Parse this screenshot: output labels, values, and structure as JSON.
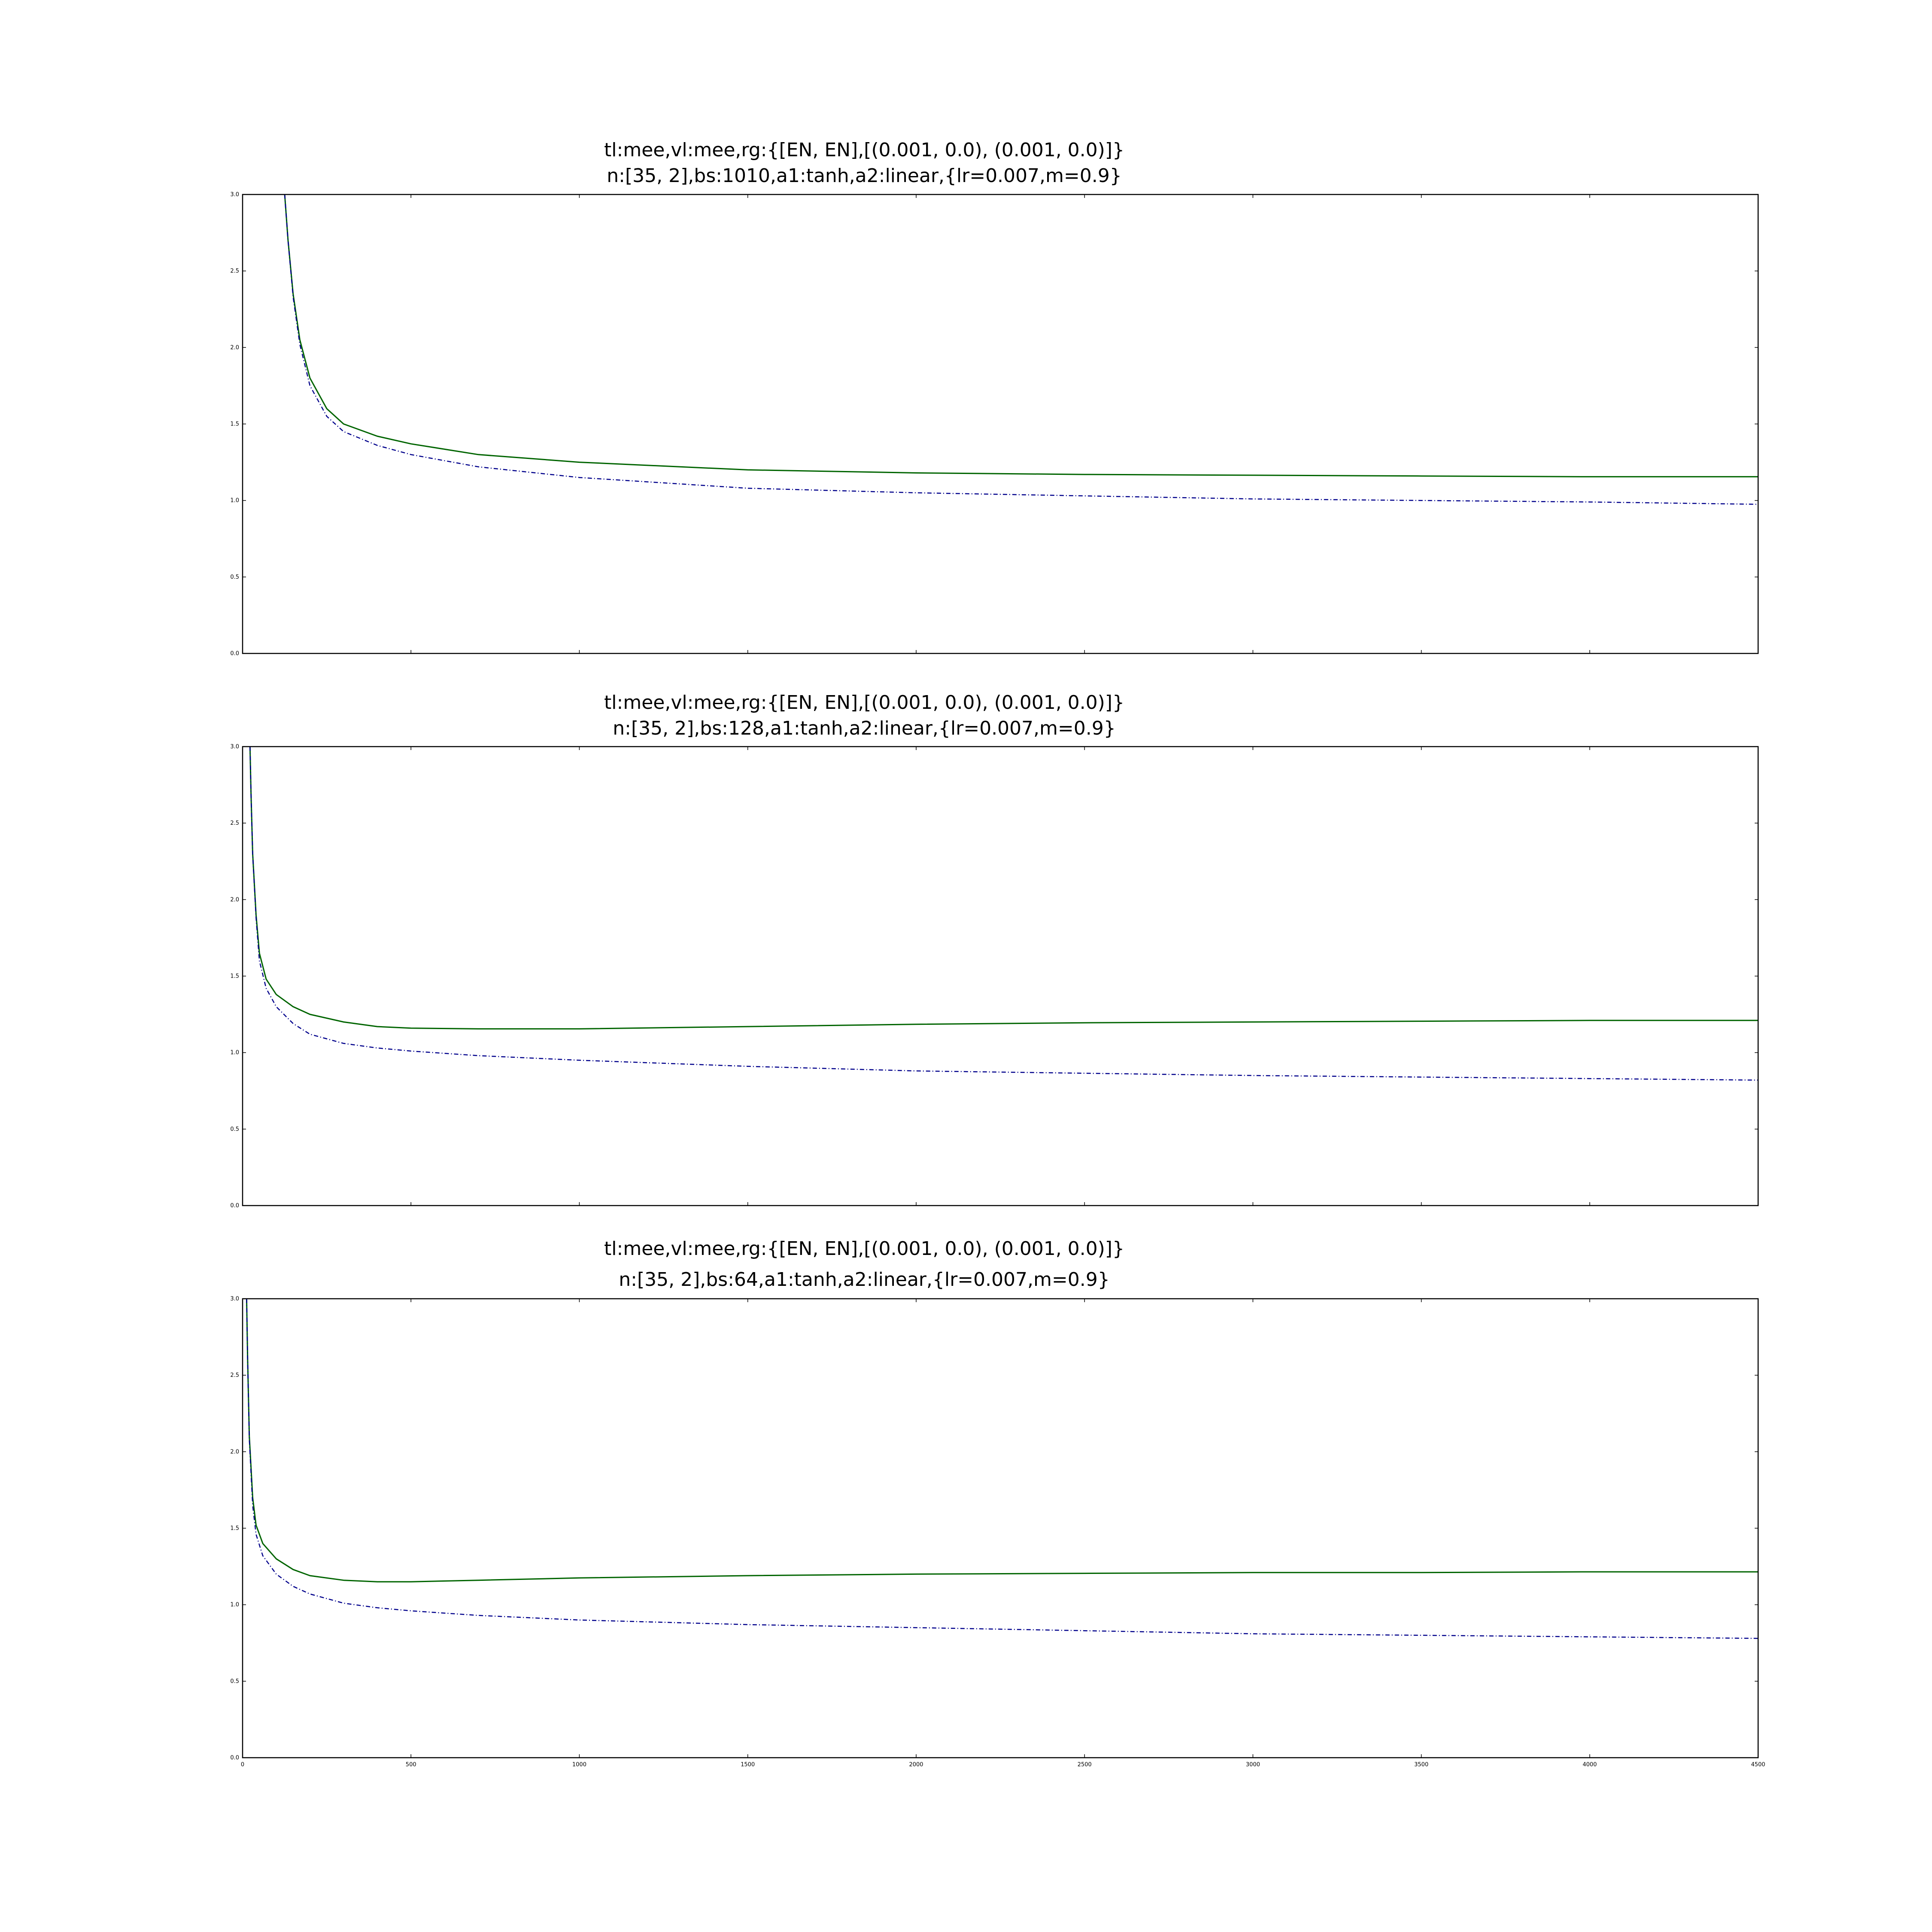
{
  "colors": {
    "validation": "#006400",
    "training": "#00008b",
    "axes": "#000000",
    "background": "#ffffff"
  },
  "chart_data": [
    {
      "type": "line",
      "title": "tl:mee,vl:mee,rg:{[EN, EN],[(0.001, 0.0), (0.001, 0.0)]}",
      "subtitle": "n:[35, 2],bs:1010,a1:tanh,a2:linear,{lr=0.007,m=0.9}",
      "xlim": [
        0,
        4500
      ],
      "ylim": [
        0.0,
        3.0
      ],
      "xticks": [
        0,
        500,
        1000,
        1500,
        2000,
        2500,
        3000,
        3500,
        4000,
        4500
      ],
      "yticks": [
        "0.0",
        "0.5",
        "1.0",
        "1.5",
        "2.0",
        "2.5",
        "3.0"
      ],
      "show_xtick_labels": false,
      "series": [
        {
          "style": "solid",
          "color": "#006400",
          "x": [
            125,
            135,
            150,
            170,
            200,
            250,
            300,
            400,
            500,
            700,
            1000,
            1500,
            2000,
            2500,
            3000,
            3500,
            4000,
            4500
          ],
          "y": [
            3.0,
            2.7,
            2.35,
            2.05,
            1.8,
            1.6,
            1.5,
            1.42,
            1.37,
            1.3,
            1.25,
            1.2,
            1.18,
            1.17,
            1.165,
            1.16,
            1.155,
            1.155
          ]
        },
        {
          "style": "dashdot",
          "color": "#00008b",
          "x": [
            125,
            135,
            150,
            170,
            200,
            250,
            300,
            400,
            500,
            700,
            1000,
            1500,
            2000,
            2500,
            3000,
            3500,
            4000,
            4500
          ],
          "y": [
            3.0,
            2.7,
            2.33,
            2.02,
            1.75,
            1.55,
            1.45,
            1.36,
            1.3,
            1.22,
            1.15,
            1.08,
            1.05,
            1.03,
            1.01,
            1.0,
            0.99,
            0.975
          ]
        }
      ]
    },
    {
      "type": "line",
      "title": "tl:mee,vl:mee,rg:{[EN, EN],[(0.001, 0.0), (0.001, 0.0)]}",
      "subtitle": "n:[35, 2],bs:128,a1:tanh,a2:linear,{lr=0.007,m=0.9}",
      "xlim": [
        0,
        4500
      ],
      "ylim": [
        0.0,
        3.0
      ],
      "xticks": [
        0,
        500,
        1000,
        1500,
        2000,
        2500,
        3000,
        3500,
        4000,
        4500
      ],
      "yticks": [
        "0.0",
        "0.5",
        "1.0",
        "1.5",
        "2.0",
        "2.5",
        "3.0"
      ],
      "show_xtick_labels": false,
      "series": [
        {
          "style": "solid",
          "color": "#006400",
          "x": [
            22,
            25,
            30,
            40,
            50,
            70,
            100,
            150,
            200,
            300,
            400,
            500,
            700,
            1000,
            1500,
            2000,
            2500,
            3000,
            3500,
            4000,
            4500
          ],
          "y": [
            3.0,
            2.7,
            2.3,
            1.9,
            1.65,
            1.48,
            1.38,
            1.3,
            1.25,
            1.2,
            1.17,
            1.16,
            1.155,
            1.155,
            1.17,
            1.185,
            1.195,
            1.2,
            1.205,
            1.21,
            1.21
          ]
        },
        {
          "style": "dashdot",
          "color": "#00008b",
          "x": [
            22,
            25,
            30,
            40,
            50,
            70,
            100,
            150,
            200,
            300,
            400,
            500,
            700,
            1000,
            1500,
            2000,
            2500,
            3000,
            3500,
            4000,
            4500
          ],
          "y": [
            3.0,
            2.7,
            2.3,
            1.88,
            1.6,
            1.42,
            1.3,
            1.19,
            1.12,
            1.06,
            1.03,
            1.01,
            0.98,
            0.95,
            0.91,
            0.88,
            0.865,
            0.85,
            0.84,
            0.83,
            0.82
          ]
        }
      ]
    },
    {
      "type": "line",
      "title": "tl:mee,vl:mee,rg:{[EN, EN],[(0.001, 0.0), (0.001, 0.0)]}",
      "subtitle": "n:[35, 2],bs:64,a1:tanh,a2:linear,{lr=0.007,m=0.9}",
      "xlim": [
        0,
        4500
      ],
      "ylim": [
        0.0,
        3.0
      ],
      "xticks": [
        0,
        500,
        1000,
        1500,
        2000,
        2500,
        3000,
        3500,
        4000,
        4500
      ],
      "xtick_labels": [
        "0",
        "500",
        "1000",
        "1500",
        "2000",
        "2500",
        "3000",
        "3500",
        "4000",
        "4500"
      ],
      "yticks": [
        "0.0",
        "0.5",
        "1.0",
        "1.5",
        "2.0",
        "2.5",
        "3.0"
      ],
      "show_xtick_labels": true,
      "series": [
        {
          "style": "solid",
          "color": "#006400",
          "x": [
            12,
            15,
            20,
            30,
            40,
            60,
            100,
            150,
            200,
            300,
            400,
            500,
            700,
            1000,
            1500,
            2000,
            2500,
            3000,
            3500,
            4000,
            4500
          ],
          "y": [
            3.0,
            2.6,
            2.1,
            1.7,
            1.52,
            1.4,
            1.3,
            1.23,
            1.19,
            1.16,
            1.15,
            1.15,
            1.16,
            1.175,
            1.19,
            1.2,
            1.205,
            1.21,
            1.21,
            1.215,
            1.215
          ]
        },
        {
          "style": "dashdot",
          "color": "#00008b",
          "x": [
            12,
            15,
            20,
            30,
            40,
            60,
            100,
            150,
            200,
            300,
            400,
            500,
            700,
            1000,
            1500,
            2000,
            2500,
            3000,
            3500,
            4000,
            4500
          ],
          "y": [
            3.0,
            2.6,
            2.08,
            1.65,
            1.46,
            1.32,
            1.2,
            1.12,
            1.07,
            1.01,
            0.98,
            0.96,
            0.93,
            0.9,
            0.87,
            0.85,
            0.83,
            0.81,
            0.8,
            0.79,
            0.78
          ]
        }
      ]
    }
  ]
}
